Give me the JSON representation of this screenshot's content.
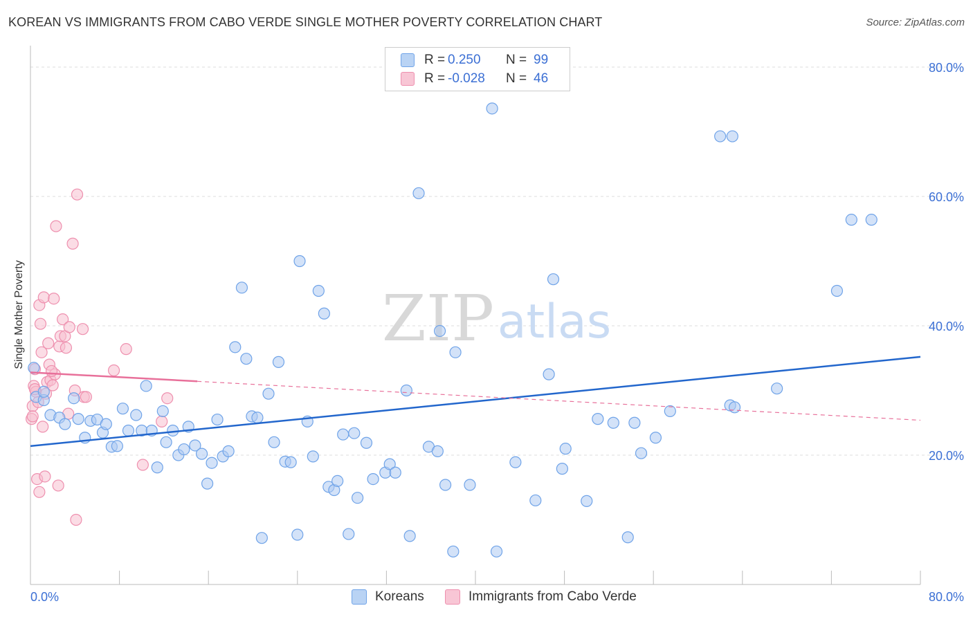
{
  "header": {
    "title": "KOREAN VS IMMIGRANTS FROM CABO VERDE SINGLE MOTHER POVERTY CORRELATION CHART",
    "source": "Source: ZipAtlas.com"
  },
  "watermark": {
    "zip": "ZIP",
    "atlas": "atlas"
  },
  "legend": {
    "rows": [
      {
        "r_label": "R =",
        "r_value": "0.250",
        "n_label": "N =",
        "n_value": "99",
        "color": "#6fa3e8"
      },
      {
        "r_label": "R =",
        "r_value": "-0.028",
        "n_label": "N =",
        "n_value": "46",
        "color": "#f29bb6"
      }
    ]
  },
  "bottom_legend": {
    "koreans": "Koreans",
    "cabo_verde": "Immigrants from Cabo Verde"
  },
  "colors": {
    "blue_fill": "#aecbf2",
    "blue_stroke": "#6fa3e8",
    "blue_line": "#2266cc",
    "pink_fill": "#f7bfd0",
    "pink_stroke": "#ee8fae",
    "pink_line": "#e8709a",
    "grid": "#dddddd",
    "tick_label": "#3b6fd4"
  },
  "chart_data": {
    "type": "scatter",
    "title": "KOREAN VS IMMIGRANTS FROM CABO VERDE SINGLE MOTHER POVERTY CORRELATION CHART",
    "xlabel": "",
    "ylabel": "Single Mother Poverty",
    "xlim": [
      0,
      80
    ],
    "ylim": [
      0,
      80
    ],
    "x_tick_labels": [
      "0.0%",
      "80.0%"
    ],
    "y_ticks": [
      20,
      40,
      60,
      80
    ],
    "y_tick_labels": [
      "20.0%",
      "40.0%",
      "60.0%",
      "80.0%"
    ],
    "grid": true,
    "legend_position": "top-center",
    "series": [
      {
        "name": "Koreans",
        "points": [
          [
            0.3,
            33.5
          ],
          [
            0.5,
            29.0
          ],
          [
            1.2,
            28.5
          ],
          [
            1.2,
            29.8
          ],
          [
            1.8,
            26.2
          ],
          [
            2.6,
            25.8
          ],
          [
            3.1,
            24.8
          ],
          [
            3.9,
            28.8
          ],
          [
            4.3,
            25.6
          ],
          [
            4.9,
            22.7
          ],
          [
            5.4,
            25.3
          ],
          [
            6.0,
            25.5
          ],
          [
            6.5,
            23.5
          ],
          [
            6.8,
            24.8
          ],
          [
            7.3,
            21.3
          ],
          [
            7.8,
            21.4
          ],
          [
            8.3,
            27.2
          ],
          [
            8.8,
            23.8
          ],
          [
            9.5,
            26.2
          ],
          [
            10.0,
            23.8
          ],
          [
            10.4,
            30.7
          ],
          [
            10.9,
            23.8
          ],
          [
            11.4,
            18.1
          ],
          [
            11.9,
            26.8
          ],
          [
            12.2,
            22.0
          ],
          [
            12.8,
            23.8
          ],
          [
            13.3,
            20.0
          ],
          [
            13.8,
            20.9
          ],
          [
            14.2,
            24.4
          ],
          [
            14.8,
            21.5
          ],
          [
            15.4,
            20.2
          ],
          [
            15.9,
            15.6
          ],
          [
            16.3,
            18.8
          ],
          [
            16.8,
            25.5
          ],
          [
            17.3,
            19.8
          ],
          [
            17.8,
            20.6
          ],
          [
            18.4,
            36.7
          ],
          [
            19.0,
            45.9
          ],
          [
            19.4,
            34.9
          ],
          [
            19.9,
            26.0
          ],
          [
            20.4,
            25.8
          ],
          [
            20.8,
            7.2
          ],
          [
            21.4,
            29.5
          ],
          [
            21.9,
            22.0
          ],
          [
            22.3,
            34.4
          ],
          [
            22.9,
            19.0
          ],
          [
            23.4,
            18.9
          ],
          [
            24.0,
            7.7
          ],
          [
            24.2,
            50.0
          ],
          [
            24.9,
            25.2
          ],
          [
            25.4,
            19.8
          ],
          [
            25.9,
            45.4
          ],
          [
            26.4,
            41.9
          ],
          [
            26.8,
            15.1
          ],
          [
            27.3,
            14.6
          ],
          [
            27.6,
            16.0
          ],
          [
            28.1,
            23.2
          ],
          [
            28.6,
            7.8
          ],
          [
            29.1,
            23.4
          ],
          [
            29.4,
            13.4
          ],
          [
            30.2,
            21.9
          ],
          [
            30.8,
            16.3
          ],
          [
            31.9,
            17.3
          ],
          [
            32.3,
            18.6
          ],
          [
            32.8,
            17.3
          ],
          [
            33.8,
            30.0
          ],
          [
            34.1,
            7.5
          ],
          [
            34.9,
            60.5
          ],
          [
            35.8,
            21.3
          ],
          [
            36.6,
            20.6
          ],
          [
            36.8,
            39.2
          ],
          [
            37.3,
            15.4
          ],
          [
            38.0,
            5.1
          ],
          [
            38.2,
            35.9
          ],
          [
            39.5,
            15.4
          ],
          [
            41.5,
            73.6
          ],
          [
            41.9,
            5.1
          ],
          [
            43.6,
            18.9
          ],
          [
            45.4,
            13.0
          ],
          [
            46.6,
            32.5
          ],
          [
            47.0,
            47.2
          ],
          [
            47.8,
            17.9
          ],
          [
            48.1,
            21.0
          ],
          [
            50.0,
            12.9
          ],
          [
            51.0,
            25.6
          ],
          [
            52.4,
            25.0
          ],
          [
            53.7,
            7.3
          ],
          [
            54.3,
            25.0
          ],
          [
            54.9,
            20.3
          ],
          [
            56.2,
            22.7
          ],
          [
            57.5,
            26.8
          ],
          [
            62.0,
            69.3
          ],
          [
            63.1,
            69.3
          ],
          [
            62.9,
            27.7
          ],
          [
            63.3,
            27.4
          ],
          [
            67.1,
            30.3
          ],
          [
            72.5,
            45.4
          ],
          [
            73.8,
            56.4
          ],
          [
            75.6,
            56.4
          ]
        ]
      },
      {
        "name": "Immigrants from Cabo Verde",
        "points": [
          [
            0.1,
            25.6
          ],
          [
            0.2,
            27.6
          ],
          [
            0.3,
            30.7
          ],
          [
            0.4,
            33.3
          ],
          [
            0.5,
            29.8
          ],
          [
            0.6,
            16.3
          ],
          [
            0.7,
            28.2
          ],
          [
            0.8,
            43.2
          ],
          [
            0.8,
            14.3
          ],
          [
            0.9,
            40.3
          ],
          [
            1.0,
            35.9
          ],
          [
            1.1,
            24.4
          ],
          [
            1.2,
            44.4
          ],
          [
            1.3,
            16.7
          ],
          [
            1.4,
            29.5
          ],
          [
            1.5,
            31.3
          ],
          [
            1.6,
            37.3
          ],
          [
            1.7,
            34.0
          ],
          [
            1.8,
            31.6
          ],
          [
            2.0,
            30.8
          ],
          [
            2.1,
            44.2
          ],
          [
            2.2,
            32.5
          ],
          [
            2.3,
            55.4
          ],
          [
            2.5,
            15.3
          ],
          [
            2.6,
            36.8
          ],
          [
            2.7,
            38.4
          ],
          [
            2.9,
            41.0
          ],
          [
            3.1,
            38.4
          ],
          [
            3.2,
            36.6
          ],
          [
            3.4,
            26.4
          ],
          [
            3.5,
            39.8
          ],
          [
            3.8,
            52.7
          ],
          [
            4.0,
            30.0
          ],
          [
            4.1,
            10.0
          ],
          [
            4.2,
            60.3
          ],
          [
            4.7,
            39.5
          ],
          [
            4.8,
            29.0
          ],
          [
            5.0,
            29.0
          ],
          [
            7.5,
            33.1
          ],
          [
            8.6,
            36.4
          ],
          [
            10.1,
            18.5
          ],
          [
            11.8,
            25.2
          ],
          [
            12.3,
            28.8
          ],
          [
            0.2,
            26.0
          ],
          [
            0.4,
            30.2
          ],
          [
            1.9,
            33.0
          ]
        ]
      }
    ],
    "trend_lines": [
      {
        "series": "Koreans",
        "x": [
          0,
          80
        ],
        "y": [
          21.4,
          35.2
        ]
      },
      {
        "series": "Immigrants from Cabo Verde",
        "x": [
          0,
          80
        ],
        "y": [
          32.8,
          25.4
        ],
        "solid_until_x": 15
      }
    ]
  }
}
